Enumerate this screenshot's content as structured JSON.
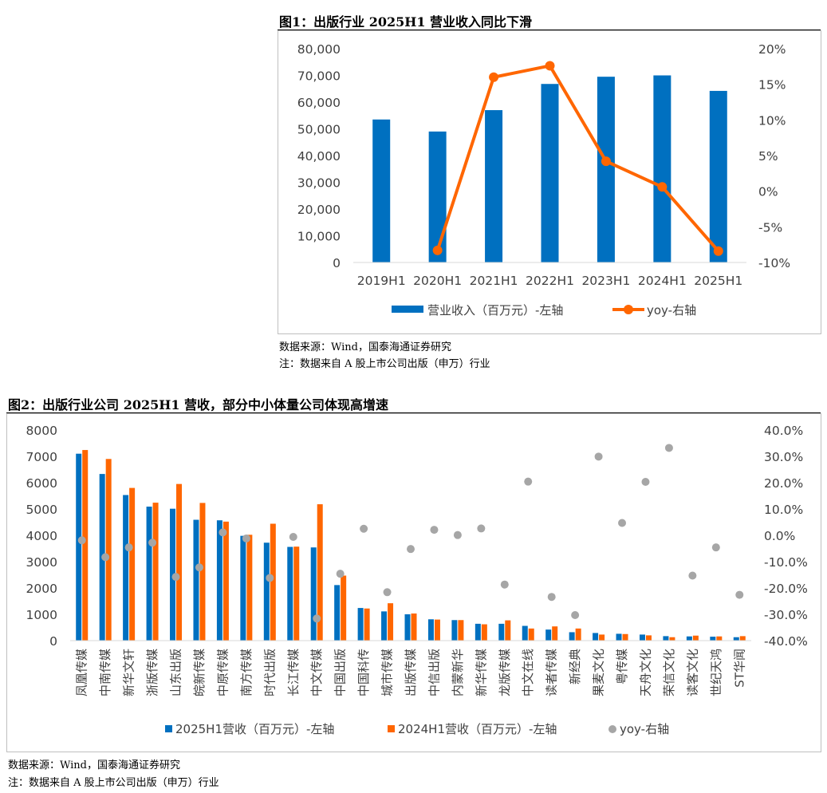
{
  "figure1": {
    "title": "图1：出版行业 2025H1 营业收入同比下滑",
    "source": "数据来源：Wind，国泰海通证券研究",
    "note": "注：数据来自 A 股上市公司出版（申万）行业"
  },
  "figure2": {
    "title": "图2：出版行业公司 2025H1 营收，部分中小体量公司体现高增速",
    "source": "数据来源：Wind，国泰海通证券研究",
    "note": "注：数据来自 A 股上市公司出版（申万）行业"
  },
  "chart_data": [
    {
      "type": "bar+line",
      "title": "出版行业 2025H1 营业收入同比下滑",
      "categories": [
        "2019H1",
        "2020H1",
        "2021H1",
        "2022H1",
        "2023H1",
        "2024H1",
        "2025H1"
      ],
      "series": [
        {
          "name": "营业收入（百万元）-左轴",
          "type": "bar",
          "axis": "left",
          "values": [
            53500,
            49000,
            57000,
            66800,
            69500,
            70000,
            64200
          ]
        },
        {
          "name": "yoy-右轴",
          "type": "line",
          "axis": "right",
          "values": [
            null,
            -8.3,
            16.0,
            17.6,
            4.2,
            0.6,
            -8.4
          ]
        }
      ],
      "left_axis": {
        "ylim": [
          0,
          80000
        ],
        "ticks": [
          "0",
          "10,000",
          "20,000",
          "30,000",
          "40,000",
          "50,000",
          "60,000",
          "70,000",
          "80,000"
        ]
      },
      "right_axis": {
        "ylim": [
          -10,
          20
        ],
        "ticks": [
          "-10%",
          "-5%",
          "0%",
          "5%",
          "10%",
          "15%",
          "20%"
        ]
      },
      "colors": {
        "bar": "#0070c0",
        "line": "#ff6600"
      },
      "legend_position": "bottom"
    },
    {
      "type": "bar+scatter",
      "title": "出版行业公司 2025H1 营收，部分中小体量公司体现高增速",
      "categories": [
        "凤凰传媒",
        "中南传媒",
        "新华文轩",
        "浙版传媒",
        "山东出版",
        "皖新传媒",
        "中原传媒",
        "南方传媒",
        "时代出版",
        "长江传媒",
        "中文传媒",
        "中国出版",
        "中国科传",
        "城市传媒",
        "出版传媒",
        "中信出版",
        "内蒙新华",
        "新华传媒",
        "龙版传媒",
        "中文在线",
        "读者传媒",
        "新经典",
        "果麦文化",
        "粤传媒",
        "天舟文化",
        "荣信文化",
        "读客文化",
        "世纪天鸿",
        "ST华闻"
      ],
      "series": [
        {
          "name": "2025H1营收（百万元）-左轴",
          "type": "bar",
          "axis": "left",
          "values": [
            7100,
            6330,
            5530,
            5090,
            5010,
            4590,
            4570,
            3980,
            3720,
            3560,
            3540,
            2110,
            1240,
            1110,
            1000,
            810,
            780,
            640,
            640,
            560,
            420,
            320,
            290,
            260,
            230,
            170,
            160,
            150,
            130
          ]
        },
        {
          "name": "2024H1营收（百万元）-左轴",
          "type": "bar",
          "axis": "left",
          "values": [
            7240,
            6900,
            5800,
            5240,
            5950,
            5230,
            4520,
            4020,
            4440,
            3570,
            5180,
            2470,
            1220,
            1420,
            1030,
            800,
            780,
            620,
            770,
            460,
            540,
            460,
            230,
            250,
            200,
            130,
            190,
            160,
            170
          ]
        },
        {
          "name": "yoy-右轴",
          "type": "scatter",
          "axis": "right",
          "values": [
            -1.9,
            -8.3,
            -4.6,
            -2.8,
            -15.8,
            -12.2,
            1.1,
            -1.2,
            -16.2,
            -0.6,
            -31.6,
            -14.6,
            2.5,
            -21.6,
            -5.2,
            2.1,
            0.1,
            2.6,
            -18.7,
            20.4,
            -23.4,
            -30.3,
            29.9,
            4.7,
            20.3,
            33.2,
            -15.3,
            -4.6,
            -22.6
          ]
        }
      ],
      "left_axis": {
        "ylim": [
          0,
          8000
        ],
        "ticks": [
          "0",
          "1000",
          "2000",
          "3000",
          "4000",
          "5000",
          "6000",
          "7000",
          "8000"
        ]
      },
      "right_axis": {
        "ylim": [
          -40,
          40
        ],
        "ticks": [
          "-40.0%",
          "-30.0%",
          "-20.0%",
          "-10.0%",
          "0.0%",
          "10.0%",
          "20.0%",
          "30.0%",
          "40.0%"
        ]
      },
      "colors": {
        "bar_2025": "#0070c0",
        "bar_2024": "#ff6600",
        "scatter": "#a6a6a6"
      },
      "legend_position": "bottom"
    }
  ]
}
